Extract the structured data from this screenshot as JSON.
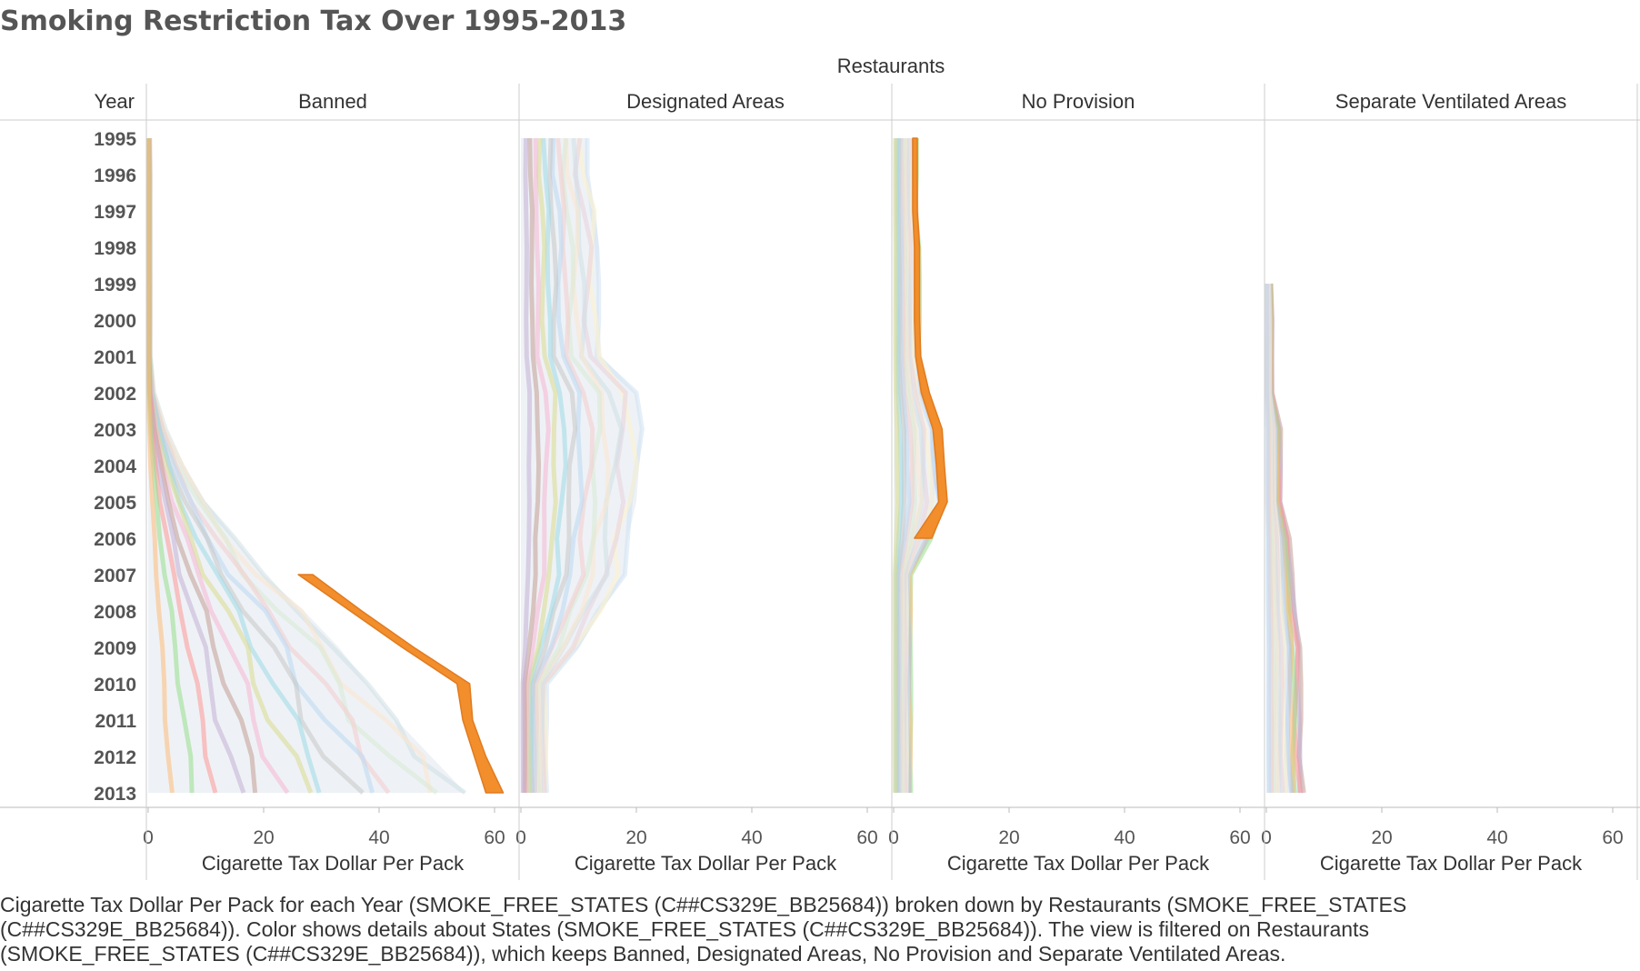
{
  "chart_data": {
    "type": "area",
    "title": "Smoking Restriction Tax Over 1995-2013",
    "column_group_label": "Restaurants",
    "row_header_label": "Year",
    "panels": [
      "Banned",
      "Designated Areas",
      "No Provision",
      "Separate Ventilated Areas"
    ],
    "years": [
      "1995",
      "1996",
      "1997",
      "1998",
      "1999",
      "2000",
      "2001",
      "2002",
      "2003",
      "2004",
      "2005",
      "2006",
      "2007",
      "2008",
      "2009",
      "2010",
      "2011",
      "2012",
      "2013"
    ],
    "xlabel": "Cigarette Tax Dollar Per Pack",
    "xticks": [
      0,
      20,
      40,
      60
    ],
    "xlim": [
      0,
      64
    ],
    "grid": false,
    "highlight_color": "#f28e2b",
    "series": [
      {
        "panel": "Banned",
        "stack_totals": [
          0.3,
          0.4,
          0.4,
          0.4,
          0.4,
          0.4,
          0.4,
          1.0,
          3.0,
          6.0,
          10.0,
          15.0,
          20.0,
          27.0,
          33.0,
          38.0,
          43.0,
          49.0,
          55.0
        ],
        "highlight_bounds": [
          [
            null,
            null
          ],
          [
            null,
            null
          ],
          [
            null,
            null
          ],
          [
            null,
            null
          ],
          [
            null,
            null
          ],
          [
            null,
            null
          ],
          [
            null,
            null
          ],
          [
            null,
            null
          ],
          [
            null,
            null
          ],
          [
            null,
            null
          ],
          [
            null,
            null
          ],
          [
            null,
            null
          ],
          [
            26.0,
            28.5
          ],
          [
            35.0,
            37.0
          ],
          [
            44.0,
            46.0
          ],
          [
            53.5,
            55.7
          ],
          [
            54.5,
            56.2
          ],
          [
            56.5,
            58.5
          ],
          [
            58.5,
            61.5
          ]
        ]
      },
      {
        "panel": "Designated Areas",
        "stack_totals": [
          11.5,
          11.5,
          13.0,
          13.5,
          13.5,
          13.5,
          14.0,
          20.0,
          21.0,
          20.5,
          20.0,
          18.5,
          18.0,
          14.0,
          10.0,
          4.5,
          4.5,
          4.5,
          4.5
        ],
        "highlight_bounds": []
      },
      {
        "panel": "No Provision",
        "stack_totals": [
          4.0,
          4.0,
          4.0,
          4.5,
          4.5,
          4.5,
          4.5,
          5.5,
          8.0,
          8.5,
          9.0,
          6.5,
          3.0,
          3.0,
          3.0,
          3.0,
          3.0,
          3.0,
          3.0
        ],
        "highlight_bounds": [
          [
            3.3,
            4.1
          ],
          [
            3.3,
            4.1
          ],
          [
            3.3,
            4.1
          ],
          [
            3.6,
            4.5
          ],
          [
            3.6,
            4.5
          ],
          [
            3.6,
            4.5
          ],
          [
            3.8,
            4.7
          ],
          [
            4.8,
            6.2
          ],
          [
            6.8,
            8.4
          ],
          [
            7.4,
            8.8
          ],
          [
            7.8,
            9.3
          ],
          [
            3.6,
            6.6
          ],
          [
            null,
            null
          ],
          [
            null,
            null
          ],
          [
            null,
            null
          ],
          [
            null,
            null
          ],
          [
            null,
            null
          ],
          [
            null,
            null
          ],
          [
            null,
            null
          ]
        ]
      },
      {
        "panel": "Separate Ventilated Areas",
        "stack_totals": [
          0,
          0,
          0,
          0,
          0.8,
          1.0,
          1.0,
          1.0,
          2.5,
          2.5,
          2.5,
          4.0,
          4.5,
          5.0,
          6.0,
          6.0,
          6.0,
          6.0,
          6.5
        ],
        "highlight_bounds": []
      }
    ]
  },
  "caption": "Cigarette Tax Dollar Per Pack for each Year (SMOKE_FREE_STATES (C##CS329E_BB25684)) broken down by Restaurants (SMOKE_FREE_STATES (C##CS329E_BB25684)).  Color shows details about States (SMOKE_FREE_STATES (C##CS329E_BB25684)). The view is filtered on Restaurants (SMOKE_FREE_STATES (C##CS329E_BB25684)), which keeps Banned, Designated Areas, No Provision and Separate Ventilated Areas."
}
